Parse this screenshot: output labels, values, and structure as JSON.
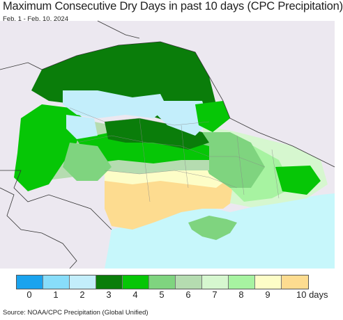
{
  "title": "Maximum Consecutive Dry Days in past 10 days (CPC Precipitation)",
  "subtitle": "Feb. 1 - Feb. 10, 2024",
  "source": "Source: NOAA/CPC Precipitation (Global Unified)",
  "legend": {
    "unit_label": "10 days",
    "ticks": [
      "0",
      "1",
      "2",
      "3",
      "4",
      "5",
      "6",
      "7",
      "8",
      "9"
    ],
    "colors": [
      "#1aa3ee",
      "#88ddfa",
      "#c3eefb",
      "#0a7d0a",
      "#06c606",
      "#7fd47f",
      "#b5dcb0",
      "#d6f7cf",
      "#a7f3a1",
      "#fdfdc7",
      "#fddc90"
    ]
  },
  "map": {
    "background_land": "#ece8f0",
    "sea": "#c7f7fb"
  }
}
